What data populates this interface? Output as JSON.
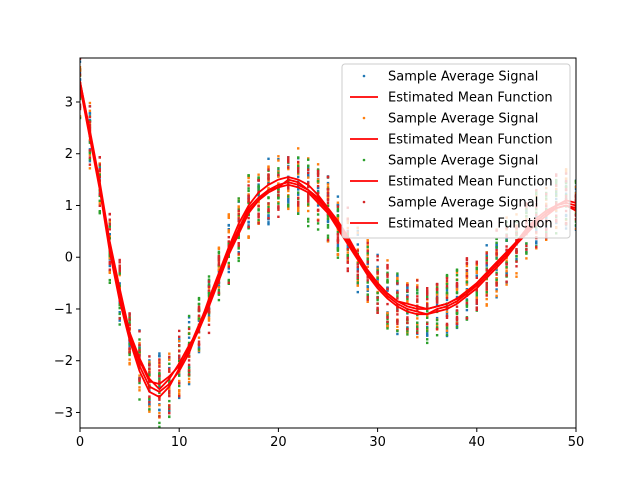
{
  "chart_data": {
    "type": "scatter",
    "xlim": [
      0,
      50
    ],
    "ylim": [
      -3.3,
      3.85
    ],
    "x_ticks": [
      0,
      10,
      20,
      30,
      40,
      50
    ],
    "y_ticks": [
      -3,
      -2,
      -1,
      0,
      1,
      2,
      3
    ],
    "grid": false,
    "legend_position": "top-right",
    "legend": [
      {
        "label": "Sample Average Signal",
        "kind": "point",
        "color": "#1f77b4"
      },
      {
        "label": "Estimated Mean Function",
        "kind": "line",
        "color": "#ff0000"
      },
      {
        "label": "Sample Average Signal",
        "kind": "point",
        "color": "#ff7f0e"
      },
      {
        "label": "Estimated Mean Function",
        "kind": "line",
        "color": "#ff0000"
      },
      {
        "label": "Sample Average Signal",
        "kind": "point",
        "color": "#2ca02c"
      },
      {
        "label": "Estimated Mean Function",
        "kind": "line",
        "color": "#ff0000"
      },
      {
        "label": "Sample Average Signal",
        "kind": "point",
        "color": "#d62728"
      },
      {
        "label": "Estimated Mean Function",
        "kind": "line",
        "color": "#ff0000"
      }
    ],
    "mean_x": [
      0,
      1,
      2,
      3,
      4,
      5,
      6,
      7,
      8,
      9,
      10,
      11,
      12,
      13,
      14,
      15,
      16,
      17,
      18,
      19,
      20,
      21,
      22,
      23,
      24,
      25,
      26,
      27,
      28,
      29,
      30,
      31,
      32,
      33,
      34,
      35,
      36,
      37,
      38,
      39,
      40,
      41,
      42,
      43,
      44,
      45,
      46,
      47,
      48,
      49,
      50
    ],
    "series": [
      {
        "values": [
          3.4,
          2.4,
          1.4,
          0.2,
          -0.7,
          -1.5,
          -2.0,
          -2.4,
          -2.45,
          -2.3,
          -2.1,
          -1.8,
          -1.4,
          -0.9,
          -0.4,
          0.1,
          0.5,
          0.9,
          1.1,
          1.3,
          1.4,
          1.45,
          1.4,
          1.3,
          1.1,
          0.9,
          0.6,
          0.3,
          0.0,
          -0.3,
          -0.55,
          -0.75,
          -0.9,
          -1.0,
          -1.05,
          -1.1,
          -1.05,
          -1.0,
          -0.9,
          -0.75,
          -0.6,
          -0.4,
          -0.2,
          0.0,
          0.25,
          0.45,
          0.65,
          0.8,
          0.95,
          1.0,
          0.95
        ]
      },
      {
        "values": [
          3.35,
          2.35,
          1.35,
          0.25,
          -0.75,
          -1.55,
          -2.1,
          -2.5,
          -2.6,
          -2.45,
          -2.2,
          -1.85,
          -1.35,
          -0.8,
          -0.3,
          0.2,
          0.65,
          1.0,
          1.25,
          1.4,
          1.5,
          1.55,
          1.5,
          1.4,
          1.2,
          0.95,
          0.7,
          0.4,
          0.05,
          -0.25,
          -0.5,
          -0.7,
          -0.85,
          -0.95,
          -1.0,
          -1.0,
          -0.95,
          -0.9,
          -0.8,
          -0.65,
          -0.5,
          -0.3,
          -0.1,
          0.1,
          0.3,
          0.5,
          0.7,
          0.85,
          1.0,
          1.05,
          1.0
        ]
      },
      {
        "values": [
          3.3,
          2.3,
          1.3,
          0.1,
          -0.85,
          -1.6,
          -2.2,
          -2.6,
          -2.7,
          -2.5,
          -2.15,
          -1.75,
          -1.3,
          -0.85,
          -0.35,
          0.15,
          0.55,
          0.95,
          1.15,
          1.3,
          1.35,
          1.4,
          1.35,
          1.25,
          1.05,
          0.85,
          0.55,
          0.25,
          -0.05,
          -0.35,
          -0.6,
          -0.8,
          -0.95,
          -1.05,
          -1.1,
          -1.1,
          -1.0,
          -0.95,
          -0.85,
          -0.7,
          -0.55,
          -0.35,
          -0.15,
          0.05,
          0.3,
          0.5,
          0.7,
          0.85,
          0.95,
          1.0,
          0.9
        ]
      },
      {
        "values": [
          3.4,
          2.45,
          1.45,
          0.3,
          -0.6,
          -1.45,
          -1.95,
          -2.35,
          -2.55,
          -2.35,
          -2.05,
          -1.7,
          -1.4,
          -0.95,
          -0.45,
          0.05,
          0.45,
          0.85,
          1.1,
          1.25,
          1.35,
          1.5,
          1.45,
          1.3,
          1.15,
          0.9,
          0.65,
          0.35,
          0.05,
          -0.25,
          -0.5,
          -0.7,
          -0.85,
          -0.9,
          -0.95,
          -1.0,
          -0.95,
          -0.9,
          -0.8,
          -0.7,
          -0.5,
          -0.3,
          -0.1,
          0.1,
          0.3,
          0.55,
          0.75,
          0.9,
          1.0,
          1.1,
          1.05
        ]
      }
    ]
  }
}
